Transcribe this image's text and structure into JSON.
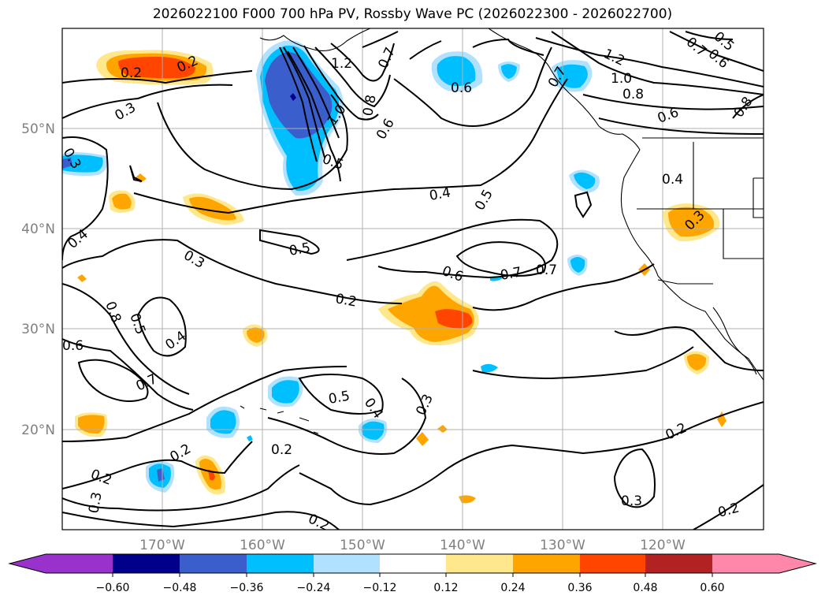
{
  "title": "2026022100 F000 700 hPa PV, Rossby Wave PC (2026022300 - 2026022700)",
  "map": {
    "lon_range": [
      -180,
      -110
    ],
    "lat_range": [
      10,
      60
    ],
    "lon_ticks": [
      "170°W",
      "160°W",
      "150°W",
      "140°W",
      "130°W",
      "120°W"
    ],
    "lat_ticks": [
      "50°N",
      "40°N",
      "30°N",
      "20°N"
    ],
    "contour_labels": [
      "0.2",
      "0.2",
      "1.2",
      "0.7",
      "0.6",
      "1.2",
      "1.0",
      "0.8",
      "0.7",
      "0.6",
      "0.5",
      "0.8",
      "0.3",
      "0.3",
      "0.8",
      "0.6",
      "0.7",
      "0.6",
      "1.0",
      "0.5",
      "0.4",
      "0.5",
      "0.4",
      "0.3",
      "0.4",
      "0.5",
      "0.3",
      "0.6",
      "0.7",
      "0.7",
      "0.2",
      "0.8",
      "0.5",
      "0.6",
      "0.4",
      "0.7",
      "0.5",
      "0.4",
      "0.3",
      "0.2",
      "0.2",
      "0.2",
      "0.3",
      "0.2",
      "0.3",
      "0.2",
      "0.2"
    ]
  },
  "colorbar": {
    "ticks": [
      "−0.60",
      "−0.48",
      "−0.36",
      "−0.24",
      "−0.12",
      "0.12",
      "0.24",
      "0.36",
      "0.48",
      "0.60"
    ],
    "colors": [
      "#9932cc",
      "#00008b",
      "#3a5fcd",
      "#00bfff",
      "#b0e2ff",
      "#ffffff",
      "#ffe78c",
      "#ffa500",
      "#ff4500",
      "#b22222",
      "#ff88aa"
    ]
  }
}
